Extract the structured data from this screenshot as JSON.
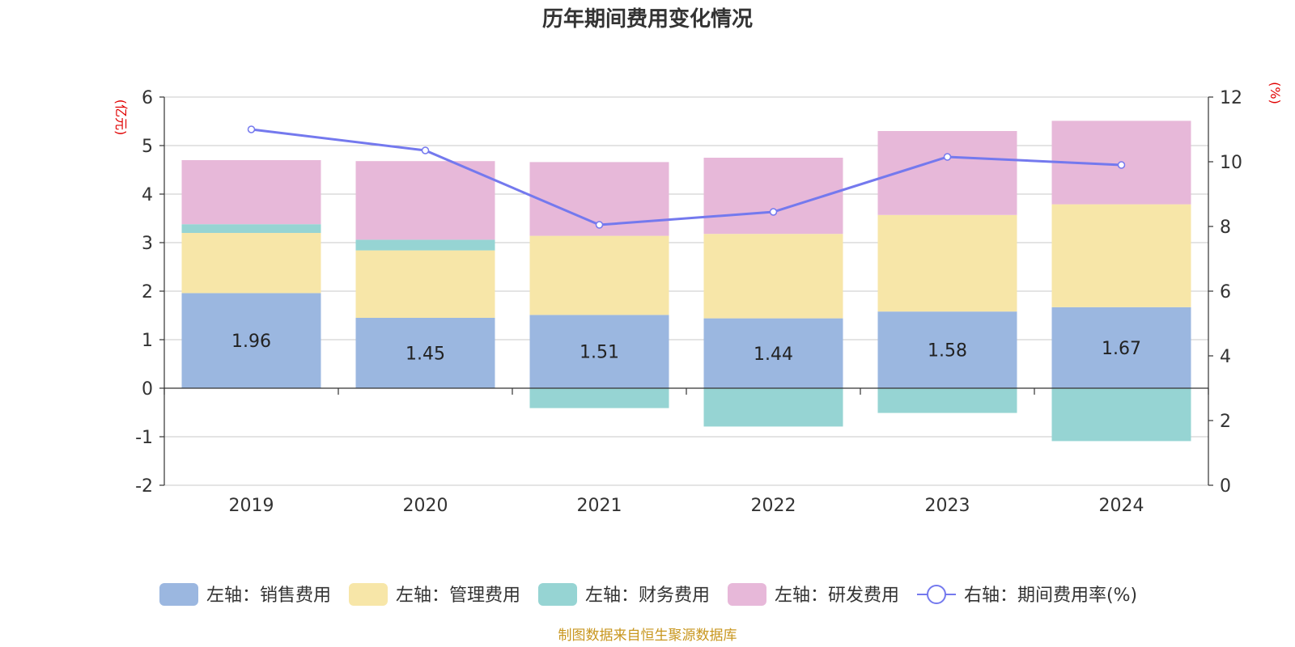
{
  "chart_data": {
    "type": "bar",
    "title": "历年期间费用变化情况",
    "categories": [
      "2019",
      "2020",
      "2021",
      "2022",
      "2023",
      "2024"
    ],
    "series": [
      {
        "name": "左轴：销售费用",
        "axis": "left",
        "color": "#9bb7e0",
        "values": [
          1.96,
          1.45,
          1.51,
          1.44,
          1.58,
          1.67
        ],
        "labels": [
          "1.96",
          "1.45",
          "1.51",
          "1.44",
          "1.58",
          "1.67"
        ]
      },
      {
        "name": "左轴：管理费用",
        "axis": "left",
        "color": "#f7e6a8",
        "values": [
          1.24,
          1.39,
          1.63,
          1.74,
          1.99,
          2.12
        ]
      },
      {
        "name": "左轴：财务费用",
        "axis": "left",
        "color": "#96d4d3",
        "values": [
          0.18,
          0.22,
          -0.41,
          -0.79,
          -0.51,
          -1.09
        ]
      },
      {
        "name": "左轴：研发费用",
        "axis": "left",
        "color": "#e7b8d9",
        "values": [
          1.32,
          1.62,
          1.52,
          1.57,
          1.73,
          1.72
        ]
      },
      {
        "name": "右轴：期间费用率(%)",
        "axis": "right",
        "type": "line",
        "color": "#7479ee",
        "values": [
          11.0,
          10.35,
          8.05,
          8.45,
          10.15,
          9.9
        ]
      }
    ],
    "left_axis": {
      "unit": "(亿元)",
      "ylim": [
        -2,
        6
      ],
      "ticks": [
        "-2",
        "-1",
        "0",
        "1",
        "2",
        "3",
        "4",
        "5",
        "6"
      ]
    },
    "right_axis": {
      "unit": "(%)",
      "ylim": [
        0,
        12
      ],
      "ticks": [
        "0",
        "2",
        "4",
        "6",
        "8",
        "10",
        "12"
      ]
    },
    "grid": true,
    "legend_position": "bottom"
  },
  "source": "制图数据来自恒生聚源数据库"
}
